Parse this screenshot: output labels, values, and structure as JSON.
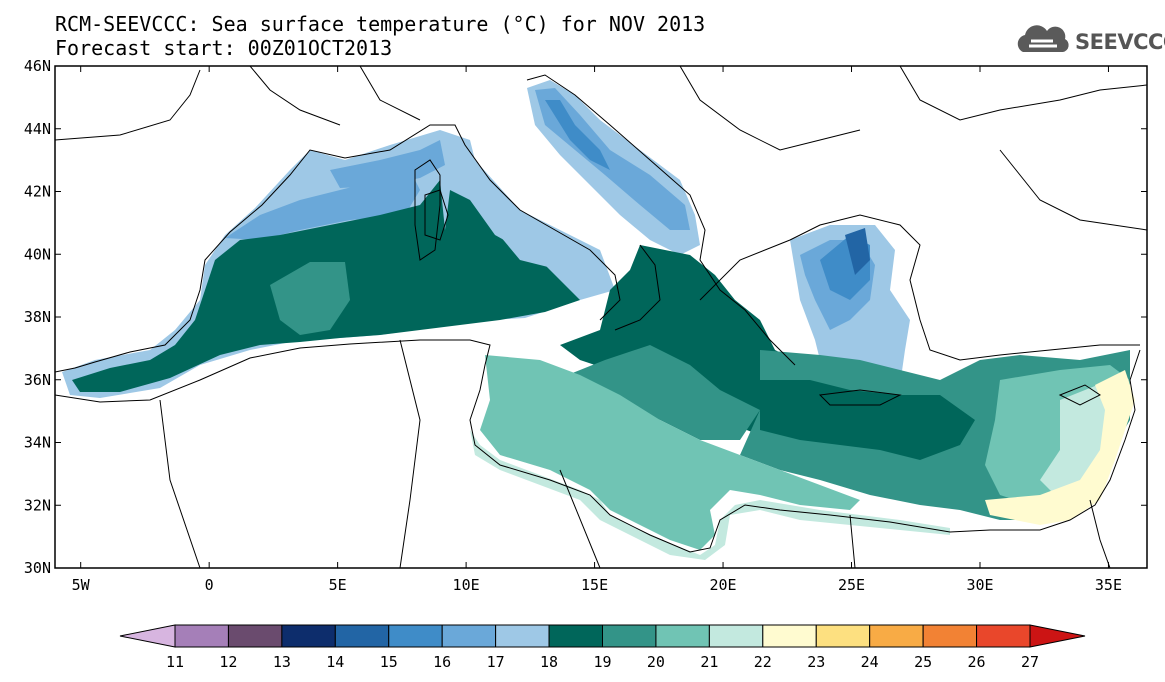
{
  "header": {
    "title": "RCM-SEEVCCC: Sea surface temperature (°C) for NOV 2013",
    "subtitle": "Forecast start: 00Z01OCT2013"
  },
  "logo": {
    "text": "SEEVCCC",
    "icon": "cloud-icon",
    "color": "#5a5a5a"
  },
  "map": {
    "y_axis_labels": [
      "46N",
      "44N",
      "42N",
      "40N",
      "38N",
      "36N",
      "34N",
      "32N",
      "30N"
    ],
    "x_axis_labels": [
      "5W",
      "0",
      "5E",
      "10E",
      "15E",
      "20E",
      "25E",
      "30E",
      "35E"
    ],
    "lon_range": [
      -6,
      36.5
    ],
    "lat_range": [
      30,
      46
    ]
  },
  "colorbar": {
    "labels": [
      "11",
      "12",
      "13",
      "14",
      "15",
      "16",
      "17",
      "18",
      "19",
      "20",
      "21",
      "22",
      "23",
      "24",
      "25",
      "26",
      "27"
    ],
    "colors": [
      "#d7b5e0",
      "#a57fb8",
      "#6a4b6e",
      "#0d2d6c",
      "#2265a5",
      "#3f8cc8",
      "#6aa8d9",
      "#9ec8e6",
      "#00665a",
      "#339488",
      "#70c4b4",
      "#c3e9df",
      "#fffbd0",
      "#fde080",
      "#f8ab45",
      "#f28234",
      "#e9472b",
      "#cc1414"
    ]
  }
}
